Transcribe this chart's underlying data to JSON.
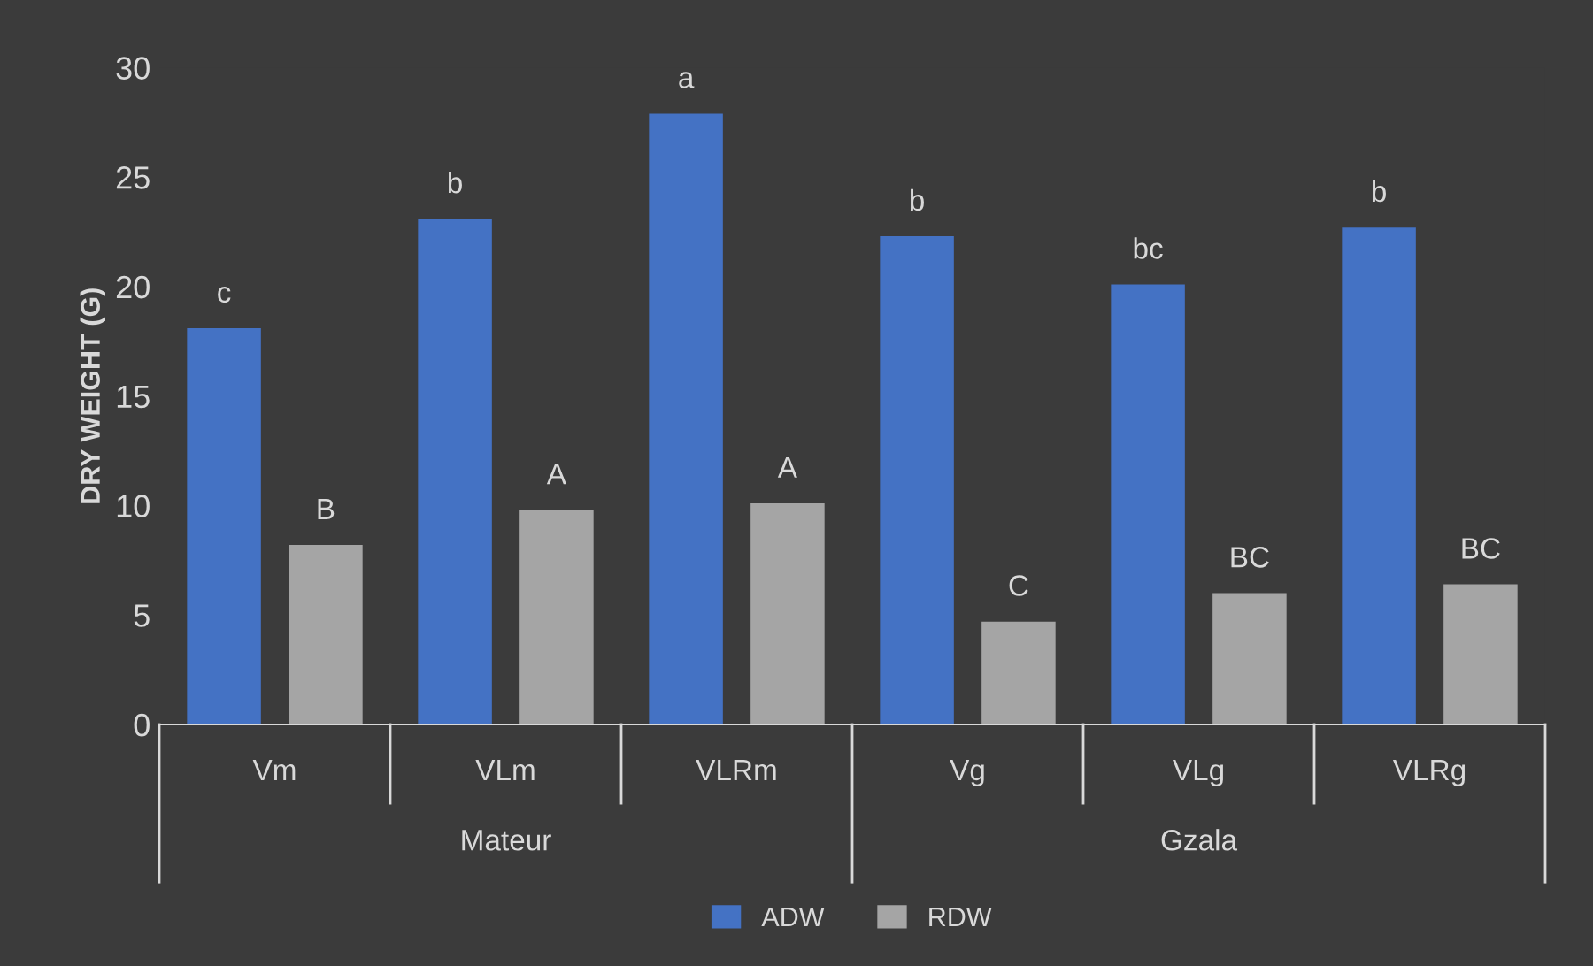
{
  "chart_data": {
    "type": "bar",
    "ylabel": "DRY WEIGHT (G)",
    "categories": [
      "Vm",
      "VLm",
      "VLRm",
      "Vg",
      "VLg",
      "VLRg"
    ],
    "series": [
      {
        "name": "ADW",
        "color": "#4472c4",
        "values": [
          18.1,
          23.1,
          27.9,
          22.3,
          20.1,
          22.7
        ],
        "value_labels": [
          "c",
          "b",
          "a",
          "b",
          "bc",
          "b"
        ]
      },
      {
        "name": "RDW",
        "color": "#a5a5a5",
        "values": [
          8.2,
          9.8,
          10.1,
          4.7,
          6.0,
          6.4
        ],
        "value_labels": [
          "B",
          "A",
          "A",
          "C",
          "BC",
          "BC"
        ]
      }
    ],
    "annotations": [
      "Mateur",
      "Gzala"
    ],
    "ylim": [
      0,
      30
    ],
    "yticks": [
      0,
      5,
      10,
      15,
      20,
      25,
      30
    ],
    "grid": false,
    "legend": "bottom"
  }
}
